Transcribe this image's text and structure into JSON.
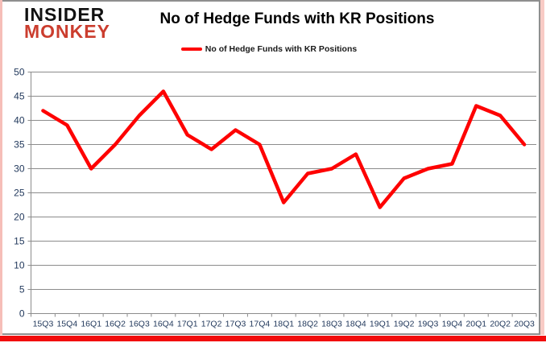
{
  "logo": {
    "line1": "INSIDER",
    "line2": "MONKEY",
    "line1_color": "#111111",
    "line2_color": "#cb3d2e"
  },
  "header": {
    "title": "No of Hedge Funds with KR Positions"
  },
  "legend": {
    "label": "No of Hedge Funds with KR Positions",
    "marker_color": "#fe0000"
  },
  "chart_data": {
    "type": "line",
    "title": "No of Hedge Funds with KR Positions",
    "categories": [
      "15Q3",
      "15Q4",
      "16Q1",
      "16Q2",
      "16Q3",
      "16Q4",
      "17Q1",
      "17Q2",
      "17Q3",
      "17Q4",
      "18Q1",
      "18Q2",
      "18Q3",
      "18Q4",
      "19Q1",
      "19Q2",
      "19Q3",
      "19Q4",
      "20Q1",
      "20Q2",
      "20Q3"
    ],
    "series": [
      {
        "name": "No of Hedge Funds with KR Positions",
        "values": [
          42,
          39,
          30,
          35,
          41,
          46,
          37,
          34,
          38,
          35,
          23,
          29,
          30,
          33,
          22,
          28,
          30,
          31,
          43,
          41,
          35
        ]
      }
    ],
    "ylim": [
      0,
      50
    ],
    "yticks": [
      0,
      5,
      10,
      15,
      20,
      25,
      30,
      35,
      40,
      45,
      50
    ],
    "grid": true,
    "legend_position": "top-center",
    "line_color": "#fe0000",
    "grid_color": "#8c8c8c",
    "axis_color": "#8c8c8c",
    "tick_label_color": "#22395c"
  },
  "frame": {
    "accent_bar_color": "#f20c0c",
    "border_color": "#8f8f8f",
    "edge_color": "#f6beb8"
  }
}
